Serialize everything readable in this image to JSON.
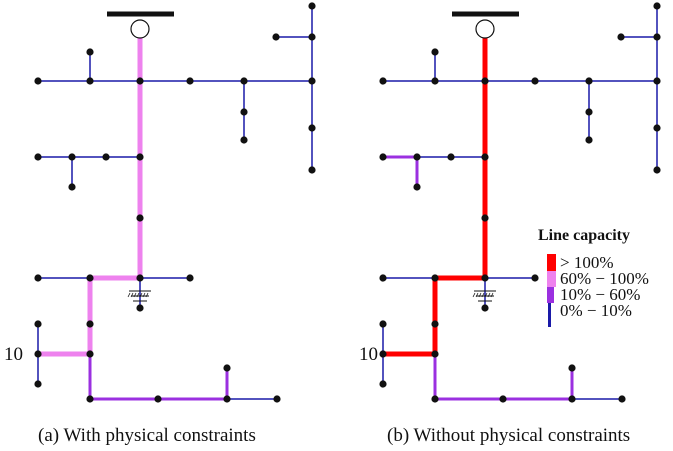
{
  "captions": {
    "a": "(a) With physical constraints",
    "b": "(b) Without physical constraints"
  },
  "node_labels": {
    "a": "10",
    "b": "10"
  },
  "legend": {
    "title": "Line capacity",
    "items": [
      {
        "label": "> 100%",
        "color": "#ff0000"
      },
      {
        "label": "60% − 100%",
        "color": "#ee82ee"
      },
      {
        "label": "10% − 60%",
        "color": "#9b30e0"
      },
      {
        "label": "0% − 10%",
        "color": "#1a1aa8"
      }
    ]
  },
  "colors": {
    "over_100": "#ff0000",
    "p60_100": "#ee82ee",
    "p10_60": "#9b30e0",
    "p0_10": "#1a1aa8",
    "node": "#111111",
    "busbar": "#111111"
  },
  "line_loading": {
    "a": {
      "feeder_trunk": "60-100",
      "lower_branch": "60-100",
      "node10_link": "60-100",
      "bottom_lines": "10-60",
      "others": "0-10"
    },
    "b": {
      "feeder_trunk": ">100",
      "lower_branch": ">100",
      "node10_link": ">100",
      "bottom_lines": "10-60",
      "small_branch": "10-60",
      "others": "0-10"
    }
  }
}
